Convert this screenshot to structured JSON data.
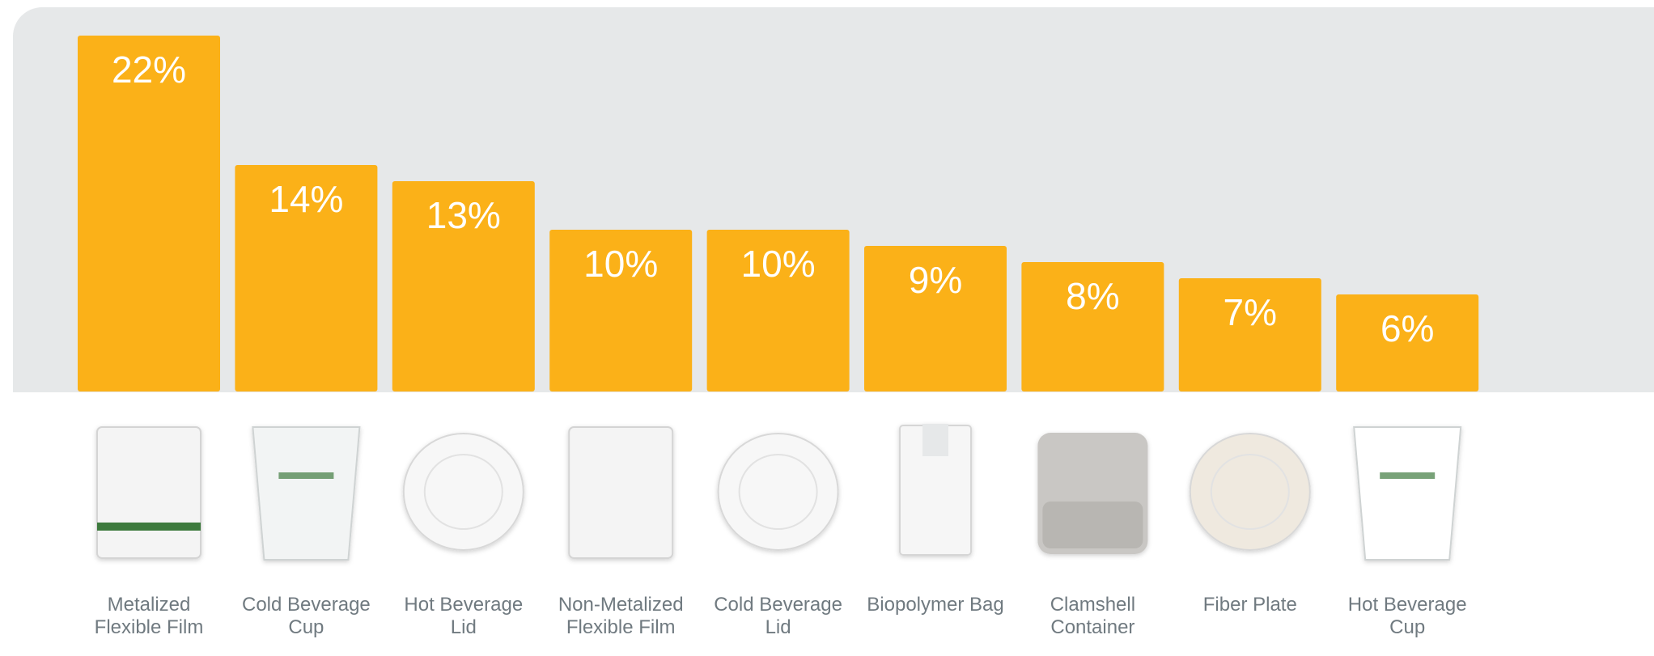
{
  "chart_data": {
    "type": "bar",
    "color": "#fbb118",
    "categories": [
      "Metalized Flexible Film",
      "Cold Beverage Cup",
      "Hot Beverage Lid",
      "Non-Metalized Flexible Film",
      "Cold Beverage Lid",
      "Biopolymer Bag",
      "Clamshell Container",
      "Fiber Plate",
      "Hot Beverage Cup"
    ],
    "values": [
      22,
      14,
      13,
      10,
      10,
      9,
      8,
      7,
      6
    ],
    "value_labels": [
      "22%",
      "14%",
      "13%",
      "10%",
      "10%",
      "9%",
      "8%",
      "7%",
      "6%"
    ]
  }
}
